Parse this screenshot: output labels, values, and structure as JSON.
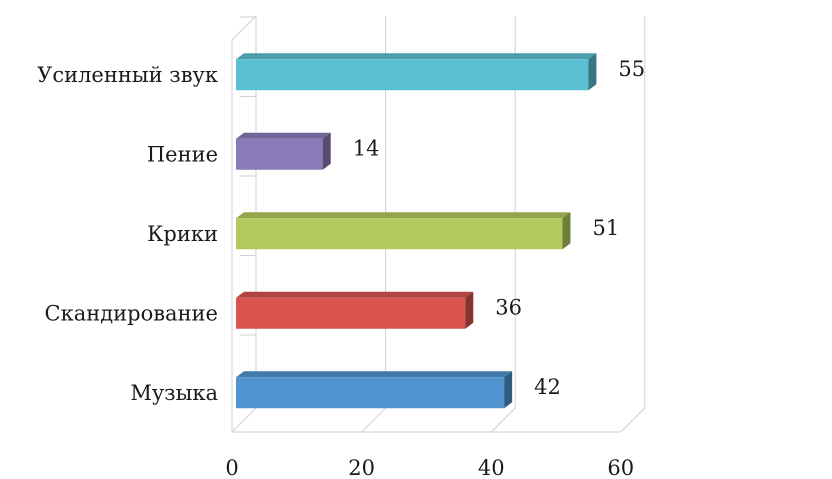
{
  "chart_data": {
    "type": "bar",
    "orientation": "horizontal",
    "style": "3d",
    "categories": [
      "Усиленный звук",
      "Пение",
      "Крики",
      "Скандирование",
      "Музыка"
    ],
    "values": [
      55,
      14,
      51,
      36,
      42
    ],
    "data_labels": [
      "55",
      "14",
      "51",
      "36",
      "42"
    ],
    "colors": [
      "#5bbfd3",
      "#8a7ab8",
      "#b2c95d",
      "#d9534f",
      "#4f94cf"
    ],
    "xlim": [
      0,
      60
    ],
    "x_ticks": [
      0,
      20,
      40,
      60
    ],
    "x_tick_labels": [
      "0",
      "20",
      "40",
      "60"
    ],
    "grid": true,
    "legend": "none",
    "title": "",
    "xlabel": "",
    "ylabel": ""
  }
}
